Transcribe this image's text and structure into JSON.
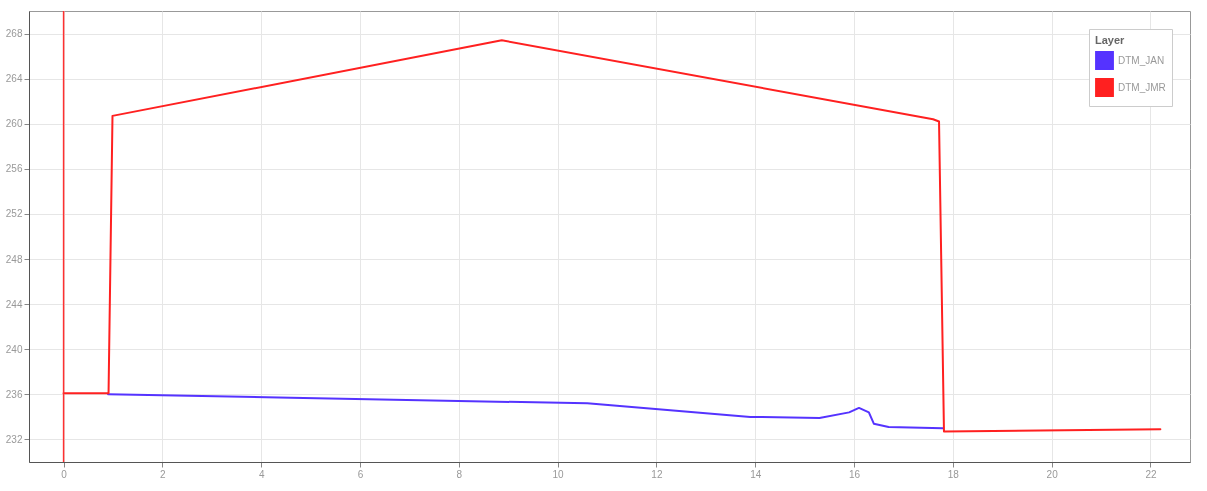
{
  "chart_data": {
    "type": "line",
    "legend_title": "Layer",
    "legend": "top right",
    "grid": true,
    "xlim": [
      -0.7,
      22.8
    ],
    "xticks": [
      0,
      2,
      4,
      6,
      8,
      10,
      12,
      14,
      16,
      18,
      20,
      22
    ],
    "ylim": [
      230,
      270
    ],
    "yticks": [
      232,
      236,
      240,
      244,
      248,
      252,
      256,
      260,
      264,
      268
    ],
    "ref_lines": [
      {
        "axis": "x",
        "value": 0,
        "color": "#ff3030"
      }
    ],
    "series": [
      {
        "name": "DTM_JAN",
        "color": "#5533ff",
        "x": [
          0.9,
          4.6,
          10.6,
          13.9,
          15.3,
          15.9,
          16.1,
          16.3,
          16.4,
          16.7,
          17.8
        ],
        "values": [
          236,
          235.7,
          235.2,
          234,
          233.9,
          234.4,
          234.8,
          234.4,
          233.4,
          233.1,
          233
        ]
      },
      {
        "name": "DTM_JMR",
        "color": "#ff2020",
        "x": [
          0,
          0.91,
          0.99,
          8.87,
          17.6,
          17.72,
          17.82,
          22.2
        ],
        "values": [
          236.1,
          236.1,
          260.7,
          267.4,
          260.4,
          260.2,
          232.7,
          232.9
        ]
      }
    ]
  }
}
